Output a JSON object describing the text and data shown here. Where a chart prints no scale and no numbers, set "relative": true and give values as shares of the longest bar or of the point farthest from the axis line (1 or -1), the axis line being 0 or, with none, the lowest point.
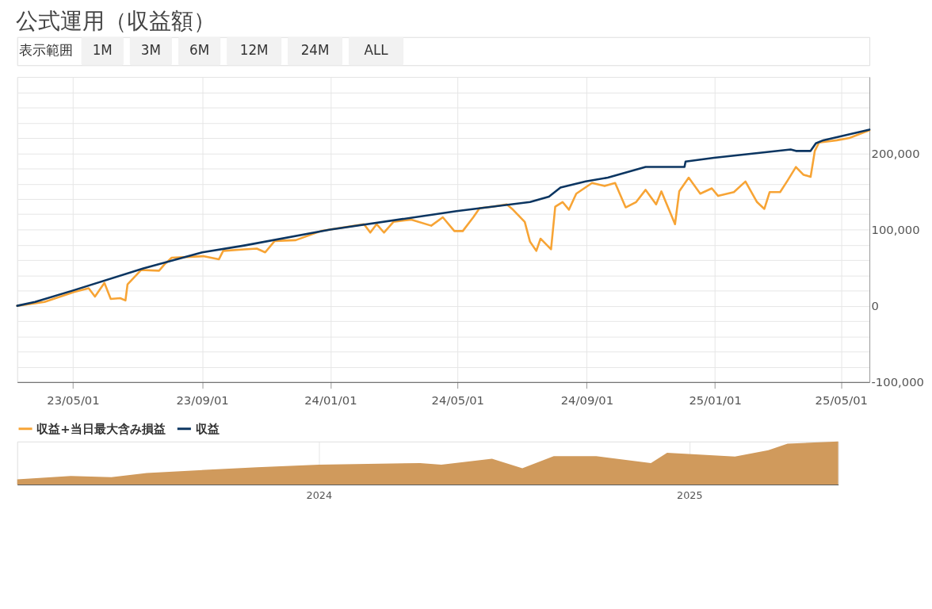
{
  "chart_data": [
    {
      "type": "line",
      "title": "公式運用（収益額）",
      "annotations": [
        "表示範囲",
        "1M",
        "3M",
        "6M",
        "12M",
        "24M",
        "ALL"
      ],
      "xlim": [
        "2023-03-09",
        "2025-05-28"
      ],
      "xticks": [
        {
          "value": "2023-05-01",
          "label": "23/05/01"
        },
        {
          "value": "2023-09-01",
          "label": "23/09/01"
        },
        {
          "value": "2024-01-01",
          "label": "24/01/01"
        },
        {
          "value": "2024-05-01",
          "label": "24/05/01"
        },
        {
          "value": "2024-09-01",
          "label": "24/09/01"
        },
        {
          "value": "2025-01-01",
          "label": "25/01/01"
        },
        {
          "value": "2025-05-01",
          "label": "25/05/01"
        }
      ],
      "ylim": [
        -100000,
        300000
      ],
      "yticks": [
        {
          "value": -100000,
          "label": "-100,000"
        },
        {
          "value": -80000,
          "label": null
        },
        {
          "value": -60000,
          "label": null
        },
        {
          "value": -40000,
          "label": null
        },
        {
          "value": -20000,
          "label": null
        },
        {
          "value": 0,
          "label": "0"
        },
        {
          "value": 20000,
          "label": null
        },
        {
          "value": 40000,
          "label": null
        },
        {
          "value": 60000,
          "label": null
        },
        {
          "value": 80000,
          "label": null
        },
        {
          "value": 100000,
          "label": "100,000"
        },
        {
          "value": 120000,
          "label": null
        },
        {
          "value": 140000,
          "label": null
        },
        {
          "value": 160000,
          "label": null
        },
        {
          "value": 180000,
          "label": null
        },
        {
          "value": 200000,
          "label": "200,000"
        },
        {
          "value": 220000,
          "label": null
        },
        {
          "value": 240000,
          "label": null
        },
        {
          "value": 260000,
          "label": null
        },
        {
          "value": 280000,
          "label": null
        },
        {
          "value": 300000,
          "label": null
        }
      ],
      "grid": true,
      "legend": "bottom",
      "series": [
        {
          "name": "収益+当日最大含み損益",
          "color": "#f7a435",
          "x": [
            "2023-03-09",
            "2023-04-04",
            "2023-05-02",
            "2023-05-16",
            "2023-05-22",
            "2023-05-31",
            "2023-06-06",
            "2023-06-15",
            "2023-06-20",
            "2023-06-22",
            "2023-07-05",
            "2023-07-22",
            "2023-07-27",
            "2023-08-03",
            "2023-09-02",
            "2023-09-17",
            "2023-09-21",
            "2023-10-11",
            "2023-10-23",
            "2023-10-31",
            "2023-11-09",
            "2023-11-29",
            "2023-12-23",
            "2024-02-02",
            "2024-02-08",
            "2024-02-14",
            "2024-02-21",
            "2024-03-01",
            "2024-03-18",
            "2024-04-06",
            "2024-04-17",
            "2024-04-28",
            "2024-05-06",
            "2024-05-16",
            "2024-05-22",
            "2024-06-04",
            "2024-06-17",
            "2024-06-22",
            "2024-07-04",
            "2024-07-09",
            "2024-07-15",
            "2024-07-19",
            "2024-07-29",
            "2024-08-02",
            "2024-08-09",
            "2024-08-15",
            "2024-08-22",
            "2024-09-06",
            "2024-09-18",
            "2024-09-28",
            "2024-10-08",
            "2024-10-18",
            "2024-10-27",
            "2024-11-06",
            "2024-11-11",
            "2024-11-24",
            "2024-11-28",
            "2024-12-07",
            "2024-12-18",
            "2024-12-29",
            "2025-01-04",
            "2025-01-19",
            "2025-01-30",
            "2025-02-10",
            "2025-02-17",
            "2025-02-22",
            "2025-03-04",
            "2025-03-11",
            "2025-03-19",
            "2025-03-26",
            "2025-04-02",
            "2025-04-06",
            "2025-04-10",
            "2025-04-27",
            "2025-05-09",
            "2025-05-22",
            "2025-05-28"
          ],
          "values": [
            0,
            5000,
            18000,
            23000,
            12000,
            30000,
            9000,
            10000,
            7000,
            28000,
            47000,
            46000,
            54000,
            63000,
            65000,
            61000,
            72000,
            74000,
            75000,
            70000,
            85000,
            86000,
            98000,
            107000,
            96000,
            107000,
            96000,
            110000,
            113000,
            105000,
            116000,
            98000,
            98000,
            116000,
            128000,
            130000,
            133000,
            127000,
            110000,
            84000,
            72000,
            88000,
            74000,
            130000,
            136000,
            126000,
            147000,
            161000,
            157000,
            161000,
            129000,
            136000,
            152000,
            133000,
            150000,
            107000,
            150000,
            168000,
            147000,
            154000,
            144000,
            149000,
            163000,
            136000,
            127000,
            149000,
            149000,
            164000,
            182000,
            172000,
            169000,
            203000,
            214000,
            217000,
            220000,
            227000,
            230000
          ]
        },
        {
          "name": "収益",
          "color": "#0b3561",
          "x": [
            "2023-03-09",
            "2023-03-26",
            "2023-05-01",
            "2023-07-07",
            "2023-09-01",
            "2023-10-11",
            "2024-01-01",
            "2024-04-30",
            "2024-07-09",
            "2024-07-27",
            "2024-08-07",
            "2024-08-31",
            "2024-09-21",
            "2024-10-27",
            "2024-12-03",
            "2024-12-04",
            "2024-12-31",
            "2025-03-14",
            "2025-03-19",
            "2025-04-02",
            "2025-04-07",
            "2025-04-14",
            "2025-05-28"
          ],
          "values": [
            0,
            5000,
            20000,
            49000,
            70000,
            79000,
            100000,
            124000,
            136000,
            143000,
            155000,
            163000,
            168000,
            182000,
            182000,
            189000,
            194000,
            205000,
            203000,
            203000,
            213000,
            217000,
            231000
          ]
        }
      ]
    },
    {
      "type": "area",
      "relative": true,
      "xlim": [
        "2023-03-09",
        "2025-05-28"
      ],
      "xticks": [
        {
          "value": "2024-01-01",
          "label": "2024"
        },
        {
          "value": "2025-01-01",
          "label": "2025"
        }
      ],
      "tick_labels": "x",
      "grid": "x",
      "series": [
        {
          "color": "#d09a5c",
          "x": [
            "2023-03-09",
            "2023-05-01",
            "2023-06-10",
            "2023-07-15",
            "2023-09-01",
            "2023-11-01",
            "2024-01-01",
            "2024-04-10",
            "2024-05-01",
            "2024-06-20",
            "2024-07-20",
            "2024-08-20",
            "2024-10-01",
            "2024-11-24",
            "2024-12-10",
            "2025-02-15",
            "2025-03-20",
            "2025-04-08",
            "2025-05-28"
          ],
          "values": [
            0.12,
            0.2,
            0.17,
            0.27,
            0.33,
            0.4,
            0.46,
            0.5,
            0.46,
            0.6,
            0.38,
            0.66,
            0.66,
            0.5,
            0.74,
            0.65,
            0.8,
            0.95,
            1.0
          ]
        }
      ]
    }
  ]
}
